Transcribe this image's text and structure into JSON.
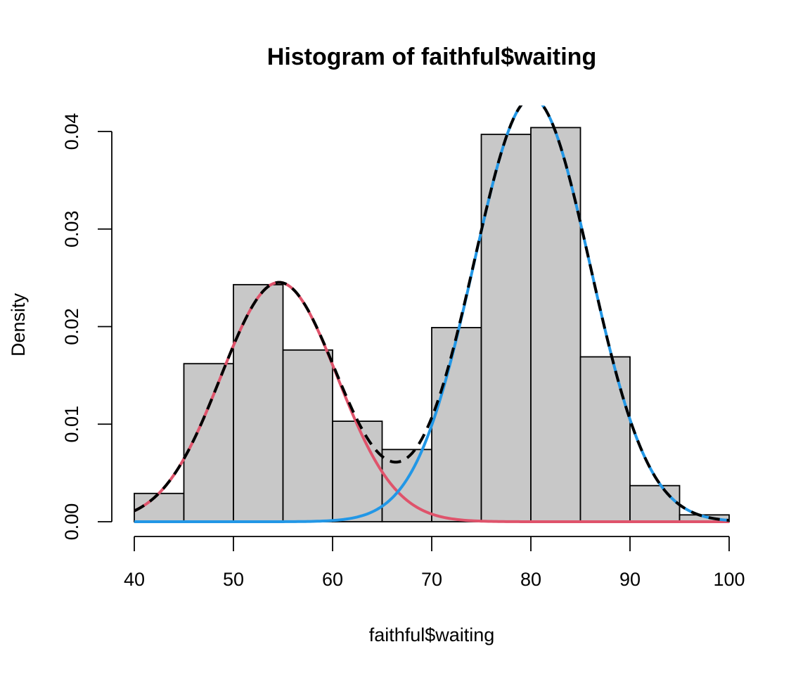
{
  "chart_data": {
    "type": "bar",
    "title": "Histogram of faithful$waiting",
    "xlabel": "faithful$waiting",
    "ylabel": "Density",
    "xlim": [
      40,
      100
    ],
    "ylim": [
      0,
      0.04
    ],
    "x_ticks": [
      "40",
      "50",
      "60",
      "70",
      "80",
      "90",
      "100"
    ],
    "y_ticks": [
      "0.00",
      "0.01",
      "0.02",
      "0.03",
      "0.04"
    ],
    "grid": false,
    "bins": {
      "breaks": [
        40,
        45,
        50,
        55,
        60,
        65,
        70,
        75,
        80,
        85,
        90,
        95,
        100
      ],
      "density": [
        0.0029,
        0.0162,
        0.0243,
        0.0176,
        0.0103,
        0.0074,
        0.0199,
        0.0397,
        0.0404,
        0.0169,
        0.0037,
        0.0007
      ]
    },
    "curves": [
      {
        "style": "solid",
        "color": "#DF536B",
        "mixture_weight": 0.361,
        "mean": 54.6,
        "sd": 5.87
      },
      {
        "style": "solid",
        "color": "#2297E6",
        "mixture_weight": 0.639,
        "mean": 80.1,
        "sd": 5.87
      },
      {
        "style": "dashed",
        "color": "#000000",
        "kind": "mixture sum"
      }
    ],
    "colors": {
      "bar_fill": "#C8C8C8",
      "bar_stroke": "#000000"
    }
  }
}
